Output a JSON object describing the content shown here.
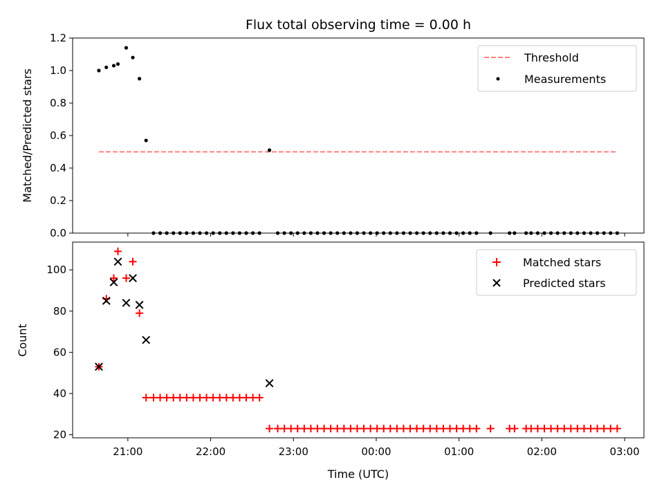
{
  "chart_data": {
    "title": "Flux total observing time = 0.00 h",
    "xlabel": "Time (UTC)",
    "x_ticks": [
      "21:00",
      "22:00",
      "23:00",
      "00:00",
      "01:00",
      "02:00",
      "03:00"
    ],
    "x_tick_hours": [
      21,
      22,
      23,
      24,
      25,
      26,
      27
    ],
    "xlim": [
      20.333,
      27.233
    ],
    "panels": [
      {
        "type": "scatter",
        "ylabel": "Matched/Predicted stars",
        "ylim": [
          0,
          1.2
        ],
        "yticks": [
          "0.0",
          "0.2",
          "0.4",
          "0.6",
          "0.8",
          "1.0",
          "1.2"
        ],
        "ytick_values": [
          0,
          0.2,
          0.4,
          0.6,
          0.8,
          1.0,
          1.2
        ],
        "legend_position": "top-right",
        "threshold": {
          "name": "Threshold",
          "value": 0.5,
          "x_start": 20.65,
          "x_end": 26.9,
          "color": "#ff7f7f"
        },
        "measurements": {
          "name": "Measurements",
          "color": "#000000",
          "x": [
            20.65,
            20.74,
            20.83,
            20.88,
            20.98,
            21.06,
            21.14,
            21.22,
            21.31,
            21.39,
            21.47,
            21.55,
            21.63,
            21.71,
            21.79,
            21.87,
            21.95,
            22.03,
            22.11,
            22.19,
            22.27,
            22.35,
            22.43,
            22.51,
            22.59,
            22.71,
            22.81,
            22.89,
            22.97,
            23.05,
            23.13,
            23.21,
            23.29,
            23.37,
            23.45,
            23.53,
            23.61,
            23.69,
            23.77,
            23.85,
            23.93,
            24.01,
            24.09,
            24.17,
            24.25,
            24.33,
            24.41,
            24.49,
            24.57,
            24.65,
            24.73,
            24.81,
            24.89,
            24.97,
            25.05,
            25.13,
            25.21,
            25.38,
            25.61,
            25.67,
            25.81,
            25.87,
            25.95,
            26.03,
            26.11,
            26.19,
            26.27,
            26.35,
            26.43,
            26.51,
            26.59,
            26.67,
            26.75,
            26.83,
            26.91
          ],
          "y": [
            1.0,
            1.02,
            1.03,
            1.04,
            1.14,
            1.08,
            0.95,
            0.57,
            0,
            0,
            0,
            0,
            0,
            0,
            0,
            0,
            0,
            0,
            0,
            0,
            0,
            0,
            0,
            0,
            0,
            0.51,
            0,
            0,
            0,
            0,
            0,
            0,
            0,
            0,
            0,
            0,
            0,
            0,
            0,
            0,
            0,
            0,
            0,
            0,
            0,
            0,
            0,
            0,
            0,
            0,
            0,
            0,
            0,
            0,
            0,
            0,
            0,
            0,
            0,
            0,
            0,
            0,
            0,
            0,
            0,
            0,
            0,
            0,
            0,
            0,
            0,
            0,
            0,
            0,
            0
          ]
        }
      },
      {
        "type": "scatter",
        "ylabel": "Count",
        "ylim": [
          18.5,
          113.5
        ],
        "yticks": [
          "20",
          "40",
          "60",
          "80",
          "100"
        ],
        "ytick_values": [
          20,
          40,
          60,
          80,
          100
        ],
        "legend_position": "top-right",
        "series": [
          {
            "name": "Matched stars",
            "marker": "plus",
            "color": "#ff0000",
            "x": [
              20.65,
              20.74,
              20.83,
              20.88,
              20.98,
              21.06,
              21.14,
              21.22,
              21.31,
              21.39,
              21.47,
              21.55,
              21.63,
              21.71,
              21.79,
              21.87,
              21.95,
              22.03,
              22.11,
              22.19,
              22.27,
              22.35,
              22.43,
              22.51,
              22.59,
              22.71,
              22.81,
              22.89,
              22.97,
              23.05,
              23.13,
              23.21,
              23.29,
              23.37,
              23.45,
              23.53,
              23.61,
              23.69,
              23.77,
              23.85,
              23.93,
              24.01,
              24.09,
              24.17,
              24.25,
              24.33,
              24.41,
              24.49,
              24.57,
              24.65,
              24.73,
              24.81,
              24.89,
              24.97,
              25.05,
              25.13,
              25.21,
              25.38,
              25.61,
              25.67,
              25.81,
              25.87,
              25.95,
              26.03,
              26.11,
              26.19,
              26.27,
              26.35,
              26.43,
              26.51,
              26.59,
              26.67,
              26.75,
              26.83,
              26.91
            ],
            "y": [
              53,
              86,
              96,
              109,
              96,
              104,
              79,
              38,
              38,
              38,
              38,
              38,
              38,
              38,
              38,
              38,
              38,
              38,
              38,
              38,
              38,
              38,
              38,
              38,
              38,
              23,
              23,
              23,
              23,
              23,
              23,
              23,
              23,
              23,
              23,
              23,
              23,
              23,
              23,
              23,
              23,
              23,
              23,
              23,
              23,
              23,
              23,
              23,
              23,
              23,
              23,
              23,
              23,
              23,
              23,
              23,
              23,
              23,
              23,
              23,
              23,
              23,
              23,
              23,
              23,
              23,
              23,
              23,
              23,
              23,
              23,
              23,
              23,
              23,
              23
            ]
          },
          {
            "name": "Predicted stars",
            "marker": "x",
            "color": "#000000",
            "x": [
              20.65,
              20.74,
              20.83,
              20.88,
              20.98,
              21.06,
              21.14,
              21.22,
              22.71
            ],
            "y": [
              53,
              85,
              94,
              104,
              84,
              96,
              83,
              66,
              45
            ]
          }
        ]
      }
    ]
  }
}
